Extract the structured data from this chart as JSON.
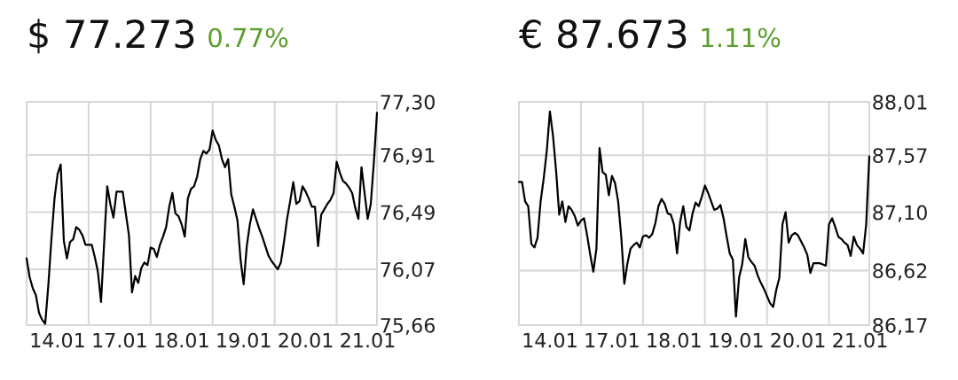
{
  "chart_data": [
    {
      "type": "line",
      "title": "$ 77.273",
      "subtitle": "0.77%",
      "grid": true,
      "marker": "none",
      "line_style": "solid",
      "categories": [
        null,
        null,
        null,
        null,
        null,
        null,
        null,
        null,
        null,
        null,
        "14.01",
        null,
        null,
        null,
        null,
        null,
        null,
        null,
        null,
        null,
        null,
        null,
        null,
        null,
        null,
        null,
        null,
        null,
        null,
        null,
        "17.01",
        null,
        null,
        null,
        null,
        null,
        null,
        null,
        null,
        null,
        null,
        null,
        null,
        null,
        null,
        null,
        null,
        null,
        null,
        null,
        "18.01",
        null,
        null,
        null,
        null,
        null,
        null,
        null,
        null,
        null,
        null,
        null,
        null,
        null,
        null,
        null,
        null,
        null,
        null,
        null,
        "19.01",
        null,
        null,
        null,
        null,
        null,
        null,
        null,
        null,
        null,
        null,
        null,
        null,
        null,
        null,
        null,
        null,
        null,
        null,
        null,
        "20.01",
        null,
        null,
        null,
        null,
        null,
        null,
        null,
        null,
        null,
        null,
        null,
        null,
        null,
        null,
        null,
        null,
        null,
        null,
        null,
        "21.01",
        null,
        null,
        null
      ],
      "ylim": [
        75.66,
        77.3
      ],
      "yticks": [
        {
          "value": 75.66,
          "label": "75,66"
        },
        {
          "value": 76.07,
          "label": "76,07"
        },
        {
          "value": 76.49,
          "label": "76,49"
        },
        {
          "value": 76.91,
          "label": "76,91"
        },
        {
          "value": 77.3,
          "label": "77,30"
        }
      ],
      "series": [
        {
          "color": "#000000",
          "values": [
            76.15,
            76.01,
            75.93,
            75.88,
            75.75,
            75.7,
            75.67,
            75.95,
            76.29,
            76.59,
            76.77,
            76.84,
            76.28,
            76.15,
            76.27,
            76.29,
            76.38,
            76.36,
            76.32,
            76.25,
            76.25,
            76.25,
            76.16,
            76.05,
            75.83,
            76.26,
            76.68,
            76.55,
            76.45,
            76.64,
            76.64,
            76.64,
            76.48,
            76.32,
            75.9,
            76.02,
            75.97,
            76.08,
            76.12,
            76.1,
            76.23,
            76.22,
            76.16,
            76.25,
            76.31,
            76.38,
            76.53,
            76.63,
            76.48,
            76.46,
            76.4,
            76.31,
            76.59,
            76.66,
            76.68,
            76.75,
            76.88,
            76.94,
            76.92,
            76.95,
            77.09,
            77.02,
            76.98,
            76.88,
            76.82,
            76.88,
            76.62,
            76.53,
            76.43,
            76.14,
            75.96,
            76.24,
            76.4,
            76.51,
            76.44,
            76.37,
            76.31,
            76.24,
            76.17,
            76.13,
            76.1,
            76.07,
            76.12,
            76.27,
            76.44,
            76.57,
            76.71,
            76.55,
            76.57,
            76.68,
            76.64,
            76.59,
            76.53,
            76.53,
            76.24,
            76.47,
            76.51,
            76.55,
            76.58,
            76.63,
            76.86,
            76.78,
            76.72,
            76.7,
            76.67,
            76.63,
            76.52,
            76.44,
            76.82,
            76.63,
            76.44,
            76.55,
            76.86,
            77.22
          ]
        }
      ]
    },
    {
      "type": "line",
      "title": "€ 87.673",
      "subtitle": "1.11%",
      "grid": true,
      "marker": "none",
      "line_style": "solid",
      "categories": [
        null,
        null,
        null,
        null,
        null,
        null,
        null,
        null,
        null,
        null,
        "14.01",
        null,
        null,
        null,
        null,
        null,
        null,
        null,
        null,
        null,
        null,
        null,
        null,
        null,
        null,
        null,
        null,
        null,
        null,
        null,
        "17.01",
        null,
        null,
        null,
        null,
        null,
        null,
        null,
        null,
        null,
        null,
        null,
        null,
        null,
        null,
        null,
        null,
        null,
        null,
        null,
        "18.01",
        null,
        null,
        null,
        null,
        null,
        null,
        null,
        null,
        null,
        null,
        null,
        null,
        null,
        null,
        null,
        null,
        null,
        null,
        null,
        "19.01",
        null,
        null,
        null,
        null,
        null,
        null,
        null,
        null,
        null,
        null,
        null,
        null,
        null,
        null,
        null,
        null,
        null,
        null,
        null,
        "20.01",
        null,
        null,
        null,
        null,
        null,
        null,
        null,
        null,
        null,
        null,
        null,
        null,
        null,
        null,
        null,
        null,
        null,
        null,
        null,
        "21.01",
        null,
        null,
        null
      ],
      "ylim": [
        86.17,
        88.01
      ],
      "yticks": [
        {
          "value": 86.17,
          "label": "86,17"
        },
        {
          "value": 86.62,
          "label": "86,62"
        },
        {
          "value": 87.1,
          "label": "87,10"
        },
        {
          "value": 87.57,
          "label": "87,57"
        },
        {
          "value": 88.01,
          "label": "88,01"
        }
      ],
      "series": [
        {
          "color": "#000000",
          "values": [
            87.35,
            87.35,
            87.19,
            87.15,
            86.84,
            86.81,
            86.89,
            87.19,
            87.38,
            87.61,
            87.93,
            87.73,
            87.44,
            87.08,
            87.19,
            87.02,
            87.15,
            87.12,
            87.07,
            86.99,
            87.03,
            87.05,
            86.91,
            86.75,
            86.61,
            86.8,
            87.63,
            87.43,
            87.41,
            87.24,
            87.4,
            87.34,
            87.19,
            86.9,
            86.51,
            86.68,
            86.8,
            86.83,
            86.85,
            86.81,
            86.9,
            86.91,
            86.89,
            86.92,
            87.01,
            87.15,
            87.21,
            87.17,
            87.09,
            87.08,
            87.0,
            86.76,
            87.02,
            87.15,
            86.98,
            86.95,
            87.09,
            87.18,
            87.15,
            87.23,
            87.32,
            87.26,
            87.19,
            87.12,
            87.13,
            87.16,
            87.05,
            86.9,
            86.76,
            86.71,
            86.24,
            86.56,
            86.67,
            86.88,
            86.73,
            86.69,
            86.66,
            86.58,
            86.52,
            86.47,
            86.41,
            86.35,
            86.32,
            86.46,
            86.56,
            87.0,
            87.1,
            86.85,
            86.91,
            86.93,
            86.91,
            86.86,
            86.81,
            86.75,
            86.6,
            86.68,
            86.68,
            86.68,
            86.67,
            86.66,
            87.0,
            87.05,
            86.98,
            86.9,
            86.88,
            86.85,
            86.83,
            86.74,
            86.9,
            86.83,
            86.8,
            86.76,
            87.0,
            87.56
          ]
        }
      ]
    }
  ]
}
